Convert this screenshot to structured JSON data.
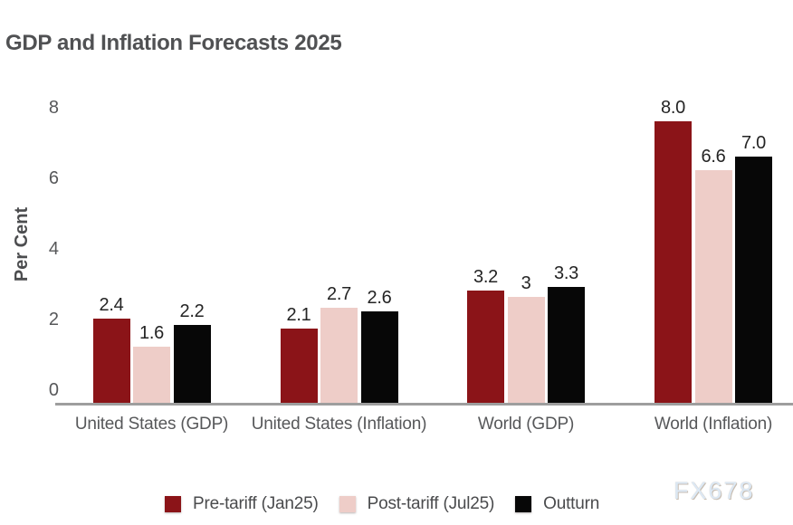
{
  "watermark": "FX678",
  "colors": {
    "axis_line": "#9E9E9E",
    "title_text": "#505153",
    "axis_text": "#57585A",
    "value_label_text": "#242424",
    "series_pre_tariff": "#8B1418",
    "series_post_tariff": "#EECDC8",
    "series_outturn": "#070707",
    "watermark_fill": "#DCE8F4",
    "watermark_edge": "#C8BEB3"
  },
  "chart_data": {
    "type": "bar",
    "title": "GDP and Inflation Forecasts 2025",
    "xlabel": "",
    "ylabel": "Per Cent",
    "ylim": [
      0,
      8
    ],
    "yticks": [
      0,
      2,
      4,
      6,
      8
    ],
    "grid": false,
    "legend_position": "bottom",
    "categories": [
      "United States (GDP)",
      "United States (Inflation)",
      "World (GDP)",
      "World (Inflation)"
    ],
    "series": [
      {
        "name": "Pre-tariff (Jan25)",
        "color": "#8B1418",
        "values": [
          2.4,
          2.1,
          3.2,
          8.0
        ],
        "labels": [
          "2.4",
          "2.1",
          "3.2",
          "8.0"
        ]
      },
      {
        "name": "Post-tariff (Jul25)",
        "color": "#EECDC8",
        "values": [
          1.6,
          2.7,
          3.0,
          6.6
        ],
        "labels": [
          "1.6",
          "2.7",
          "3",
          "6.6"
        ]
      },
      {
        "name": "Outturn",
        "color": "#070707",
        "values": [
          2.2,
          2.6,
          3.3,
          7.0
        ],
        "labels": [
          "2.2",
          "2.6",
          "3.3",
          "7.0"
        ]
      }
    ]
  }
}
